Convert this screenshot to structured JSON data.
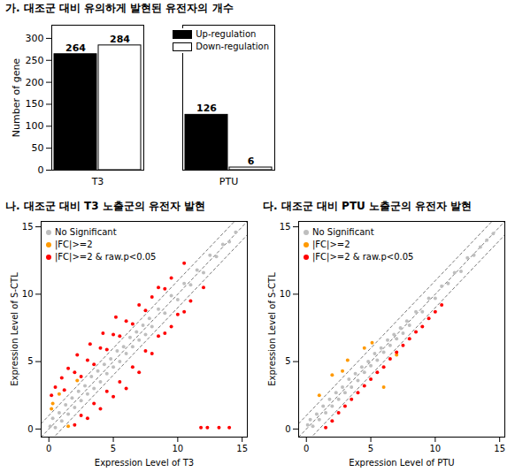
{
  "chart_data": [
    {
      "type": "bar",
      "title": "가. 대조군 대비 유의하게 발현된 유전자의 개수",
      "categories": [
        "T3",
        "PTU"
      ],
      "series": [
        {
          "name": "Up-regulation",
          "color": "#000000",
          "values": [
            264,
            126
          ]
        },
        {
          "name": "Down-regulation",
          "color": "#ffffff",
          "values": [
            284,
            6
          ]
        }
      ],
      "ylabel": "Number of gene",
      "ylim": [
        0,
        330
      ],
      "yticks": [
        0,
        50,
        100,
        150,
        200,
        250,
        300
      ],
      "data_labels": true,
      "legend": "top-right"
    },
    {
      "type": "scatter",
      "title": "나. 대조군 대비 T3 노출군의 유전자 발현",
      "xlabel": "Expression Level of T3",
      "ylabel": "Expression Level of S-CTL",
      "xlim": [
        -0.6,
        15.4
      ],
      "ylim": [
        -0.6,
        15.4
      ],
      "xticks": [
        0,
        5,
        10,
        15
      ],
      "yticks": [
        0,
        5,
        10,
        15
      ],
      "legend": "top-left",
      "reference_lines": [
        {
          "slope": 1,
          "intercept": 0
        },
        {
          "slope": 1,
          "intercept": 1
        },
        {
          "slope": 1,
          "intercept": -1
        }
      ],
      "series": [
        {
          "name": "No Significant",
          "color": "#bebebe",
          "x": [
            0.1,
            0.3,
            0.5,
            0.8,
            1.0,
            1.3,
            1.5,
            1.8,
            2.0,
            2.3,
            2.5,
            2.8,
            3.0,
            3.3,
            3.5,
            3.8,
            4.0,
            4.3,
            4.5,
            4.8,
            5.0,
            5.3,
            5.5,
            5.8,
            6.0,
            6.3,
            6.5,
            6.8,
            7.0,
            7.3,
            7.5,
            7.8,
            8.0,
            8.5,
            9.0,
            9.5,
            10.0,
            10.5,
            11.0,
            11.5,
            12.0,
            12.5,
            13.0,
            13.5,
            14.0,
            14.5
          ],
          "y": [
            0.2,
            0.8,
            0.1,
            1.2,
            0.6,
            1.8,
            1.1,
            2.3,
            1.6,
            2.8,
            2.1,
            3.2,
            2.6,
            3.9,
            3.0,
            4.3,
            3.5,
            4.8,
            4.1,
            5.2,
            4.6,
            5.8,
            5.0,
            6.1,
            5.6,
            6.8,
            6.1,
            7.2,
            6.6,
            7.7,
            7.0,
            8.2,
            7.6,
            8.9,
            8.6,
            9.9,
            9.6,
            10.8,
            10.7,
            11.8,
            11.6,
            12.9,
            12.8,
            13.7,
            13.9,
            14.6
          ]
        },
        {
          "name": "|FC|>=2",
          "color": "#ff9900",
          "x": [
            0.3,
            0.8,
            1.5,
            2.2,
            0.2
          ],
          "y": [
            1.9,
            2.6,
            0.2,
            3.6,
            1.5
          ]
        },
        {
          "name": "|FC|>=2 & raw.p<0.05",
          "color": "#ff0000",
          "x": [
            0.2,
            0.5,
            1.0,
            1.2,
            1.5,
            2.0,
            2.2,
            2.5,
            3.0,
            3.2,
            3.5,
            4.0,
            4.2,
            4.5,
            5.0,
            5.2,
            5.5,
            6.0,
            6.5,
            7.0,
            7.5,
            8.0,
            8.5,
            9.0,
            9.5,
            10.5,
            2.0,
            2.5,
            3.0,
            3.5,
            4.0,
            4.5,
            5.0,
            5.5,
            6.0,
            6.5,
            7.0,
            7.5,
            8.0,
            8.5,
            9.0,
            9.5,
            10.0,
            10.5,
            11.0,
            12.0,
            11.8,
            12.3,
            13.2,
            14.0
          ],
          "y": [
            2.5,
            3.1,
            3.8,
            2.9,
            4.5,
            4.2,
            5.5,
            3.9,
            5.1,
            6.3,
            4.8,
            6.0,
            7.1,
            5.9,
            7.0,
            8.3,
            6.9,
            8.0,
            7.8,
            9.2,
            8.8,
            9.8,
            10.5,
            10.4,
            11.2,
            12.3,
            0.3,
            1.0,
            0.8,
            1.9,
            1.5,
            2.8,
            2.4,
            3.5,
            3.0,
            4.6,
            4.2,
            5.8,
            5.6,
            6.9,
            7.1,
            7.6,
            8.5,
            8.7,
            9.5,
            10.5,
            0.1,
            0.1,
            0.1,
            0.1
          ]
        }
      ]
    },
    {
      "type": "scatter",
      "title": "다. 대조군 대비 PTU 노출군의 유전자 발현",
      "xlabel": "Expression Level of PTU",
      "ylabel": "Expression Level of S-CTL",
      "xlim": [
        -0.6,
        15.4
      ],
      "ylim": [
        -0.6,
        15.4
      ],
      "xticks": [
        0,
        5,
        10,
        15
      ],
      "yticks": [
        0,
        5,
        10,
        15
      ],
      "legend": "top-left",
      "reference_lines": [
        {
          "slope": 1,
          "intercept": 0
        },
        {
          "slope": 1,
          "intercept": 1
        },
        {
          "slope": 1,
          "intercept": -1
        }
      ],
      "series": [
        {
          "name": "No Significant",
          "color": "#bebebe",
          "x": [
            0.1,
            0.3,
            0.5,
            0.8,
            1.0,
            1.3,
            1.5,
            1.8,
            2.0,
            2.3,
            2.5,
            2.8,
            3.0,
            3.3,
            3.5,
            3.8,
            4.0,
            4.3,
            4.5,
            4.8,
            5.0,
            5.3,
            5.5,
            5.8,
            6.0,
            6.3,
            6.5,
            6.8,
            7.0,
            7.3,
            7.5,
            7.8,
            8.0,
            8.5,
            9.0,
            9.5,
            10.0,
            10.5,
            11.0,
            11.5,
            12.0,
            12.5,
            13.0,
            13.5,
            14.0,
            14.5
          ],
          "y": [
            0.3,
            0.7,
            0.2,
            1.1,
            0.7,
            1.7,
            1.2,
            2.2,
            1.7,
            2.7,
            2.2,
            3.1,
            2.7,
            3.7,
            3.1,
            4.1,
            3.6,
            4.6,
            4.2,
            5.0,
            4.7,
            5.6,
            5.1,
            6.0,
            5.7,
            6.6,
            6.2,
            7.0,
            6.7,
            7.5,
            7.1,
            8.0,
            7.7,
            8.7,
            8.7,
            9.7,
            9.7,
            10.6,
            10.8,
            11.6,
            11.7,
            12.7,
            12.9,
            13.5,
            14.0,
            14.5
          ]
        },
        {
          "name": "|FC|>=2",
          "color": "#ff9900",
          "x": [
            2.0,
            3.2,
            4.5,
            5.1,
            2.8,
            1.0,
            6.0,
            7.0
          ],
          "y": [
            4.0,
            5.1,
            6.0,
            6.4,
            4.3,
            2.5,
            3.1,
            5.5
          ]
        },
        {
          "name": "|FC|>=2 & raw.p<0.05",
          "color": "#ff0000",
          "x": [
            1.5,
            2.0,
            2.5,
            3.0,
            3.5,
            4.0,
            4.5,
            5.0,
            5.5,
            6.0,
            6.5,
            7.0,
            7.5,
            8.0,
            8.5,
            9.0,
            9.5,
            10.0,
            10.5
          ],
          "y": [
            0.1,
            0.6,
            1.2,
            1.7,
            2.2,
            2.7,
            3.2,
            3.7,
            4.2,
            4.6,
            5.2,
            5.7,
            6.2,
            6.7,
            7.2,
            7.6,
            8.2,
            8.7,
            9.2
          ]
        }
      ]
    }
  ]
}
